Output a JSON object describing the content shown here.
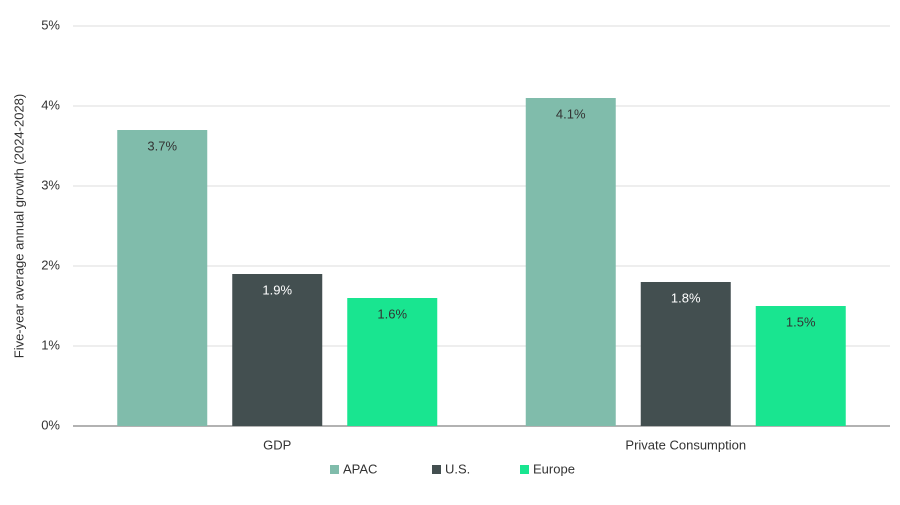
{
  "chart_data": {
    "type": "bar",
    "y_label": "Five-year average annual growth (2024-2028)",
    "categories": [
      "GDP",
      "Private Consumption"
    ],
    "series": [
      {
        "name": "APAC",
        "color": "#80bcab",
        "values": [
          3.7,
          4.1
        ],
        "value_labels": [
          "3.7%",
          "4.1%"
        ]
      },
      {
        "name": "U.S.",
        "color": "#434f50",
        "values": [
          1.9,
          1.8
        ],
        "value_labels": [
          "1.9%",
          "1.8%"
        ]
      },
      {
        "name": "Europe",
        "color": "#19e590",
        "values": [
          1.6,
          1.5
        ],
        "value_labels": [
          "1.6%",
          "1.5%"
        ]
      }
    ],
    "ylim": [
      0,
      5
    ],
    "yticks": [
      {
        "value": 0,
        "label": "0%"
      },
      {
        "value": 1,
        "label": "1%"
      },
      {
        "value": 2,
        "label": "2%"
      },
      {
        "value": 3,
        "label": "3%"
      },
      {
        "value": 4,
        "label": "4%"
      },
      {
        "value": 5,
        "label": "5%"
      }
    ],
    "grid": true,
    "legend": "bottom"
  }
}
